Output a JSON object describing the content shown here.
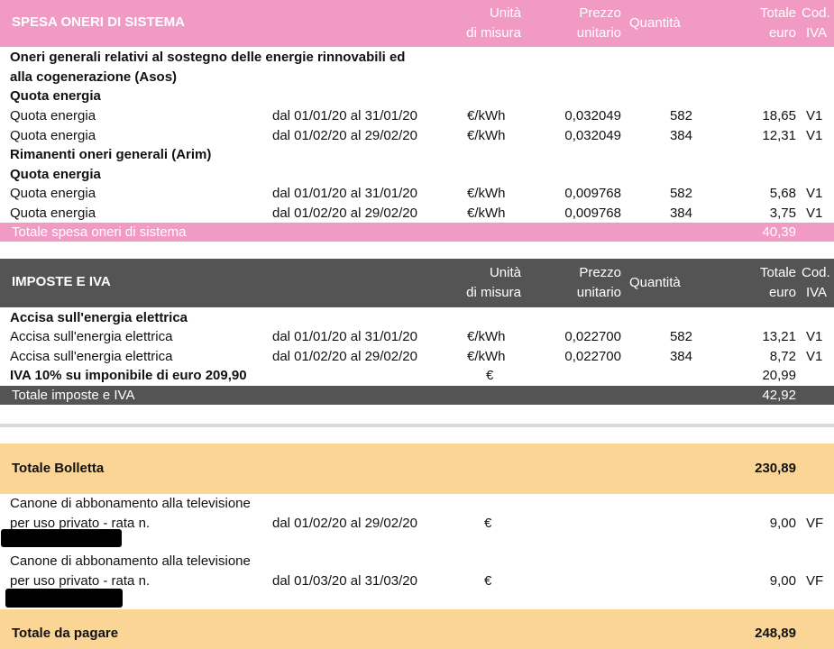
{
  "columns": {
    "unit_l1": "Unità",
    "unit_l2": "di misura",
    "price_l1": "Prezzo",
    "price_l2": "unitario",
    "qty": "Quantità",
    "total_l1": "Totale",
    "total_l2": "euro",
    "iva_l1": "Cod.",
    "iva_l2": "IVA"
  },
  "oneri": {
    "title": "SPESA ONERI DI SISTEMA",
    "asos_title_l1": "Oneri generali relativi al sostegno delle energie rinnovabili ed",
    "asos_title_l2": "alla cogenerazione (Asos)",
    "asos_sub": "Quota energia",
    "asos_rows": [
      {
        "desc": "Quota energia",
        "period": "dal 01/01/20 al 31/01/20",
        "unit": "€/kWh",
        "price": "0,032049",
        "qty": "582",
        "total": "18,65",
        "iva": "V1"
      },
      {
        "desc": "Quota energia",
        "period": "dal 01/02/20 al 29/02/20",
        "unit": "€/kWh",
        "price": "0,032049",
        "qty": "384",
        "total": "12,31",
        "iva": "V1"
      }
    ],
    "arim_title": "Rimanenti oneri generali (Arim)",
    "arim_sub": "Quota energia",
    "arim_rows": [
      {
        "desc": "Quota energia",
        "period": "dal 01/01/20 al 31/01/20",
        "unit": "€/kWh",
        "price": "0,009768",
        "qty": "582",
        "total": "5,68",
        "iva": "V1"
      },
      {
        "desc": "Quota energia",
        "period": "dal 01/02/20 al 29/02/20",
        "unit": "€/kWh",
        "price": "0,009768",
        "qty": "384",
        "total": "3,75",
        "iva": "V1"
      }
    ],
    "total_label": "Totale spesa oneri di sistema",
    "total_value": "40,39"
  },
  "imposte": {
    "title": "IMPOSTE E IVA",
    "accisa_title": "Accisa sull'energia elettrica",
    "accisa_rows": [
      {
        "desc": "Accisa sull'energia elettrica",
        "period": "dal 01/01/20 al 31/01/20",
        "unit": "€/kWh",
        "price": "0,022700",
        "qty": "582",
        "total": "13,21",
        "iva": "V1"
      },
      {
        "desc": "Accisa sull'energia elettrica",
        "period": "dal 01/02/20 al 29/02/20",
        "unit": "€/kWh",
        "price": "0,022700",
        "qty": "384",
        "total": "8,72",
        "iva": "V1"
      }
    ],
    "iva_row": {
      "desc": "IVA 10% su imponibile di euro 209,90",
      "unit": "€",
      "total": "20,99"
    },
    "total_label": "Totale imposte e IVA",
    "total_value": "42,92"
  },
  "bolletta": {
    "label": "Totale Bolletta",
    "value": "230,89"
  },
  "canone": [
    {
      "l1": "Canone di abbonamento alla televisione",
      "l2": "per uso privato - rata n.",
      "period": "dal 01/02/20 al 29/02/20",
      "unit": "€",
      "total": "9,00",
      "iva": "VF"
    },
    {
      "l1": "Canone di abbonamento alla televisione",
      "l2": "per uso privato - rata n.",
      "period": "dal 01/03/20 al 31/03/20",
      "unit": "€",
      "total": "9,00",
      "iva": "VF"
    }
  ],
  "pagare": {
    "label": "Totale da pagare",
    "value": "248,89"
  },
  "colors": {
    "pink": "#f19bc4",
    "dark": "#545454",
    "peach": "#fbd596"
  }
}
